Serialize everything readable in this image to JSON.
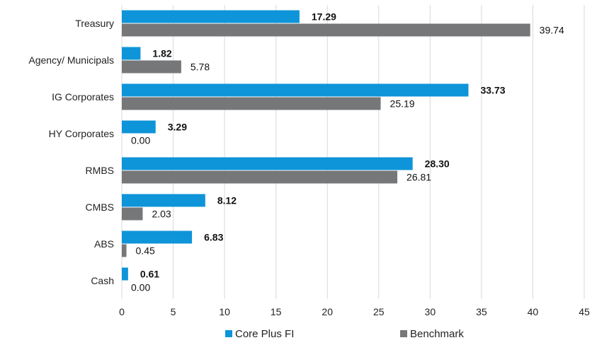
{
  "chart_data": {
    "type": "bar",
    "orientation": "horizontal",
    "categories": [
      "Treasury",
      "Agency/ Municipals",
      "IG Corporates",
      "HY Corporates",
      "RMBS",
      "CMBS",
      "ABS",
      "Cash"
    ],
    "series": [
      {
        "name": "Core Plus FI",
        "color": "#0e94d8",
        "values": [
          17.29,
          1.82,
          33.73,
          3.29,
          28.3,
          8.12,
          6.83,
          0.61
        ],
        "labels": [
          "17.29",
          "1.82",
          "33.73",
          "3.29",
          "28.30",
          "8.12",
          "6.83",
          "0.61"
        ]
      },
      {
        "name": "Benchmark",
        "color": "#767778",
        "values": [
          39.74,
          5.78,
          25.19,
          0.0,
          26.81,
          2.03,
          0.45,
          0.0
        ],
        "labels": [
          "39.74",
          "5.78",
          "25.19",
          "0.00",
          "26.81",
          "2.03",
          "0.45",
          "0.00"
        ]
      }
    ],
    "xlim": [
      0,
      45
    ],
    "xticks": [
      "0",
      "5",
      "10",
      "15",
      "20",
      "25",
      "30",
      "35",
      "40",
      "45"
    ],
    "grid": "vertical",
    "legend": "bottom"
  }
}
